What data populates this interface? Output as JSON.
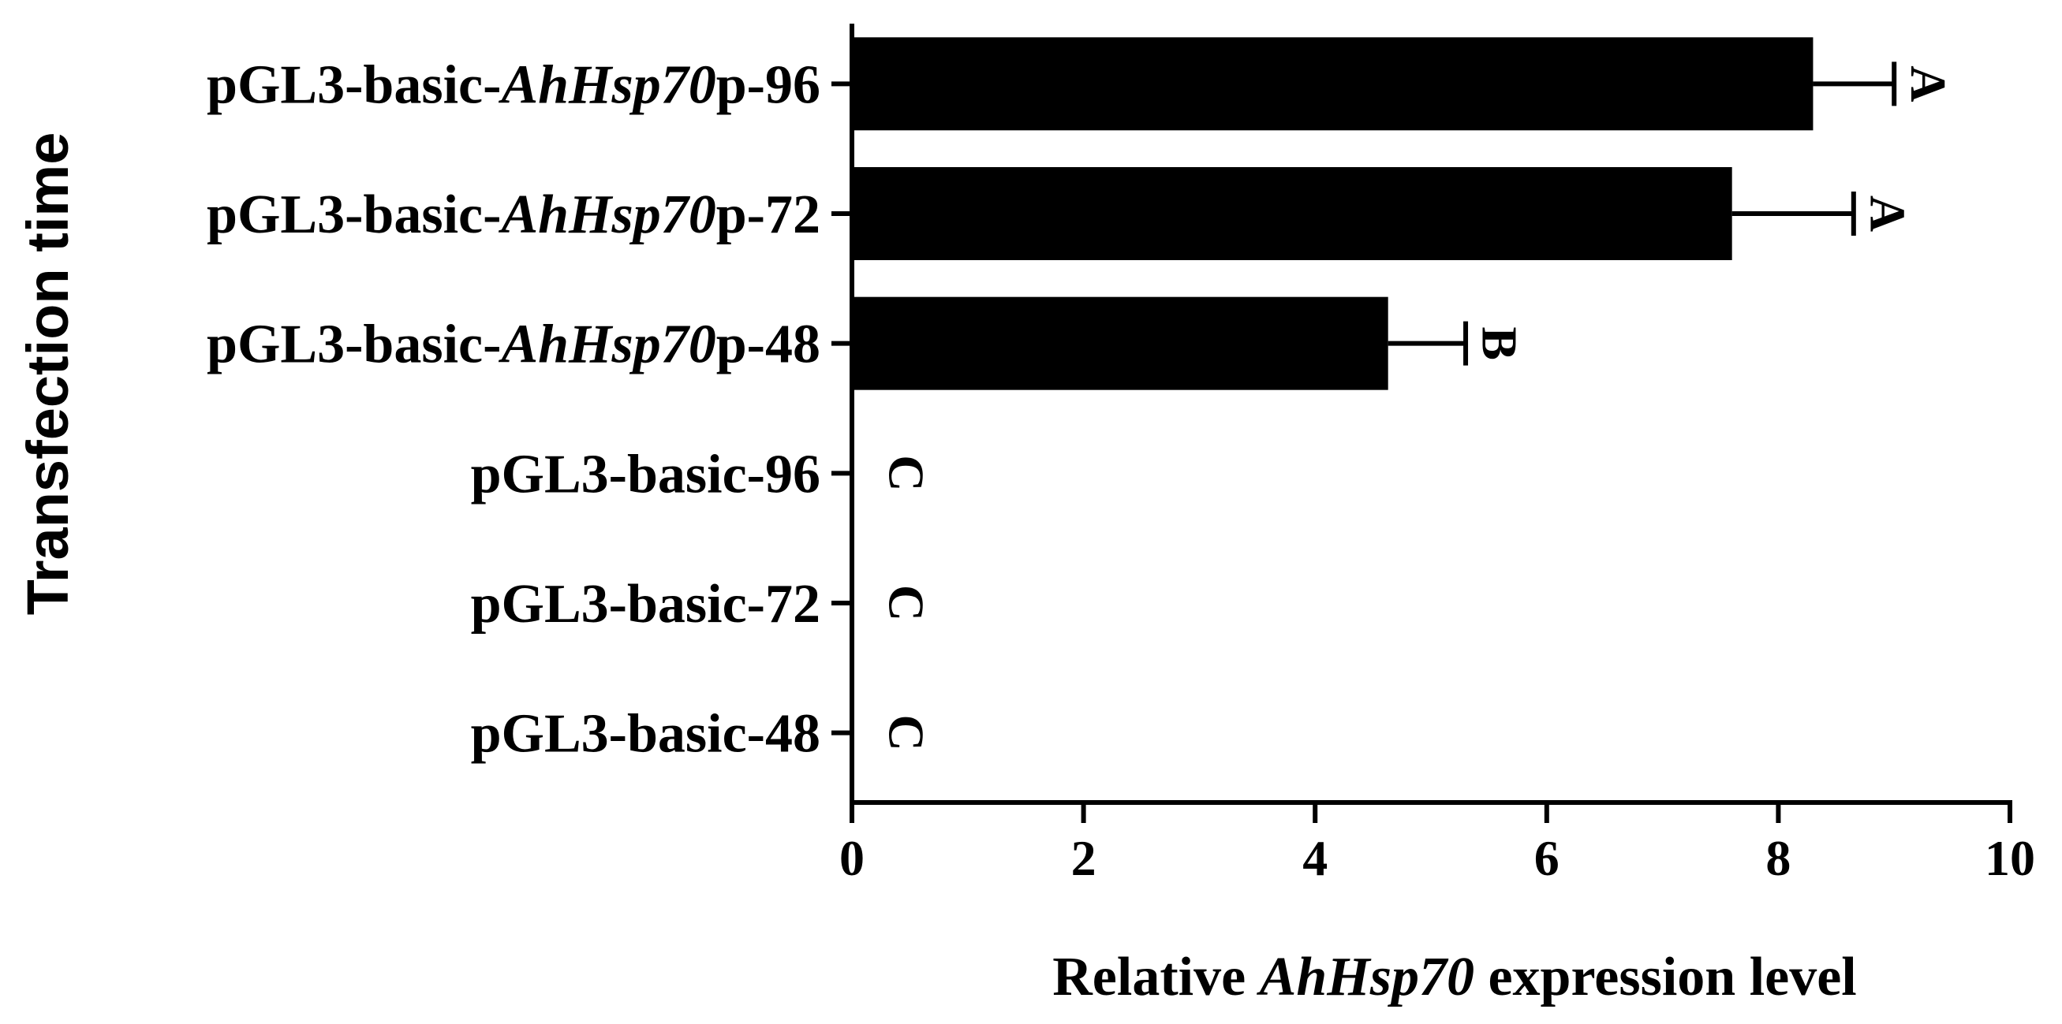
{
  "chart_data": {
    "type": "bar",
    "orientation": "horizontal",
    "xlabel_parts": [
      {
        "text": "Relative ",
        "italic": false
      },
      {
        "text": "AhHsp70",
        "italic": true
      },
      {
        "text": " expression level",
        "italic": false
      }
    ],
    "ylabel": "Transfection time",
    "xlim": [
      0,
      10
    ],
    "xticks": [
      "0",
      "2",
      "4",
      "6",
      "8",
      "10"
    ],
    "categories": [
      {
        "parts": [
          {
            "text": "pGL3-basic-",
            "italic": false
          },
          {
            "text": "AhHsp70",
            "italic": true
          },
          {
            "text": "p-96",
            "italic": false
          }
        ],
        "value": 8.3,
        "error": 0.7,
        "letter": "A"
      },
      {
        "parts": [
          {
            "text": "pGL3-basic-",
            "italic": false
          },
          {
            "text": "AhHsp70",
            "italic": true
          },
          {
            "text": "p-72",
            "italic": false
          }
        ],
        "value": 7.6,
        "error": 1.05,
        "letter": "A"
      },
      {
        "parts": [
          {
            "text": "pGL3-basic-",
            "italic": false
          },
          {
            "text": "AhHsp70",
            "italic": true
          },
          {
            "text": "p-48",
            "italic": false
          }
        ],
        "value": 4.63,
        "error": 0.67,
        "letter": "B"
      },
      {
        "parts": [
          {
            "text": "pGL3-basic-96",
            "italic": false
          }
        ],
        "value": 0.0,
        "error": 0.0,
        "letter": "C"
      },
      {
        "parts": [
          {
            "text": "pGL3-basic-72",
            "italic": false
          }
        ],
        "value": 0.0,
        "error": 0.0,
        "letter": "C"
      },
      {
        "parts": [
          {
            "text": "pGL3-basic-48",
            "italic": false
          }
        ],
        "value": 0.0,
        "error": 0.0,
        "letter": "C"
      }
    ],
    "bar_color": "#000000",
    "grid": false,
    "legend": "none"
  }
}
